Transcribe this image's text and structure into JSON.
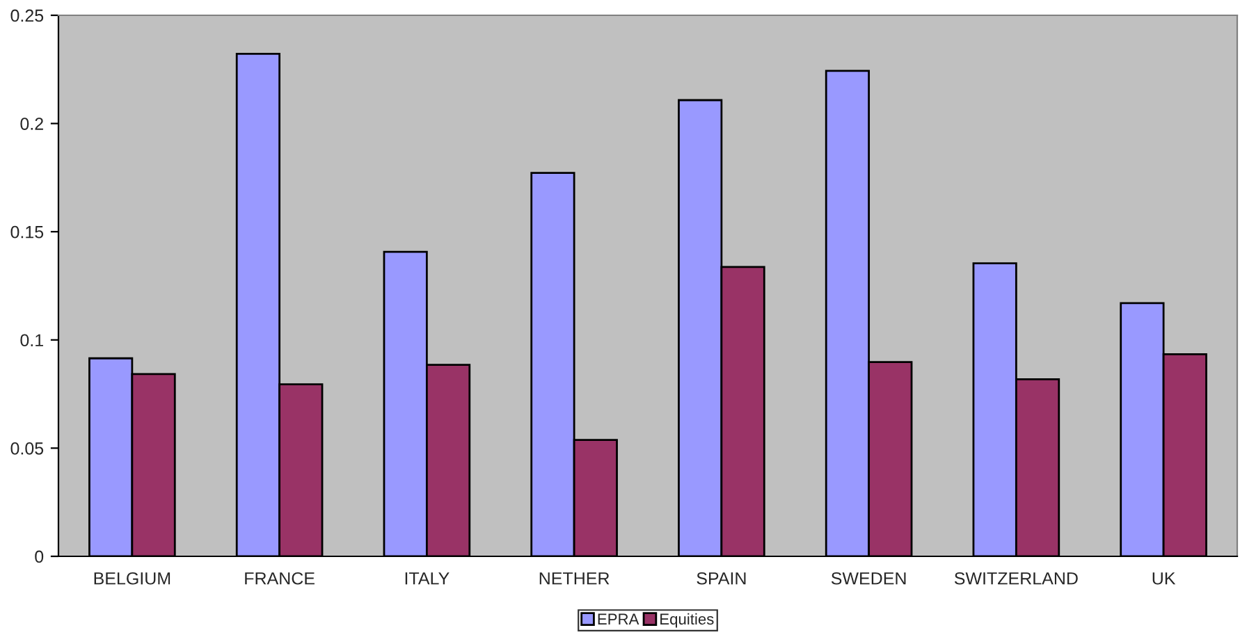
{
  "chart_data": {
    "type": "bar",
    "categories": [
      "BELGIUM",
      "FRANCE",
      "ITALY",
      "NETHER",
      "SPAIN",
      "SWEDEN",
      "SWITZERLAND",
      "UK"
    ],
    "series": [
      {
        "name": "EPRA",
        "color": "#9999ff",
        "values": [
          0.0915,
          0.2322,
          0.1407,
          0.1772,
          0.2108,
          0.2243,
          0.1354,
          0.117
        ]
      },
      {
        "name": "Equities",
        "color": "#993366",
        "values": [
          0.0842,
          0.0795,
          0.0885,
          0.0538,
          0.1337,
          0.0898,
          0.0818,
          0.0934
        ]
      }
    ],
    "ylim": [
      0,
      0.25
    ],
    "yticks": [
      0,
      0.05,
      0.1,
      0.15,
      0.2,
      0.25
    ],
    "grid": false,
    "legend": "bottom"
  }
}
